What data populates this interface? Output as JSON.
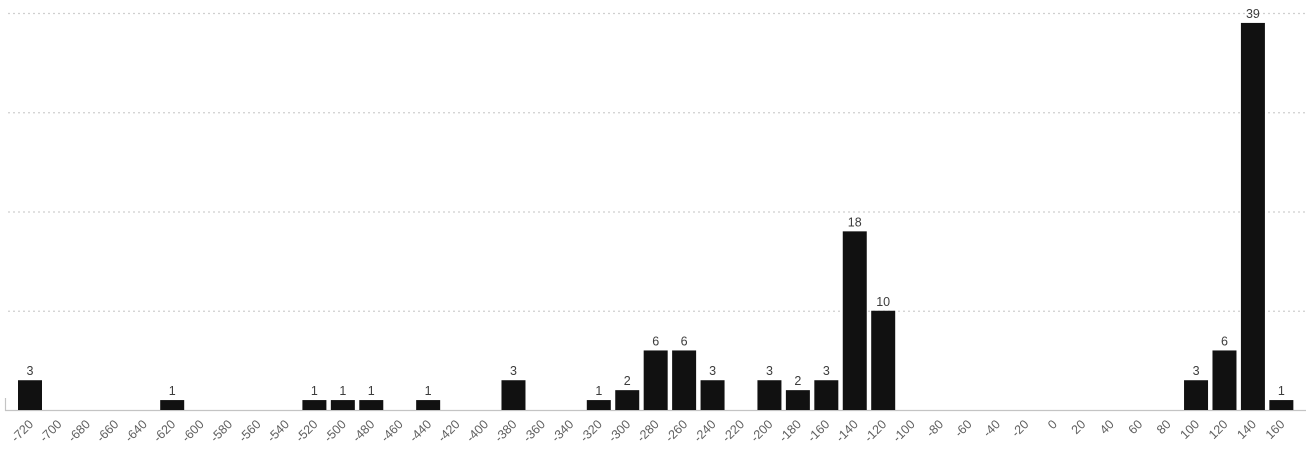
{
  "chart_data": {
    "type": "bar",
    "title": "",
    "xlabel": "",
    "ylabel": "",
    "categories": [
      "-720",
      "-700",
      "-680",
      "-660",
      "-640",
      "-620",
      "-600",
      "-580",
      "-560",
      "-540",
      "-520",
      "-500",
      "-480",
      "-460",
      "-440",
      "-420",
      "-400",
      "-380",
      "-360",
      "-340",
      "-320",
      "-300",
      "-280",
      "-260",
      "-240",
      "-220",
      "-200",
      "-180",
      "-160",
      "-140",
      "-120",
      "-100",
      "-80",
      "-60",
      "-40",
      "-20",
      "0",
      "20",
      "40",
      "60",
      "80",
      "100",
      "120",
      "140",
      "160"
    ],
    "values": [
      3,
      0,
      0,
      0,
      0,
      1,
      0,
      0,
      0,
      0,
      1,
      1,
      1,
      0,
      1,
      0,
      0,
      3,
      0,
      0,
      1,
      2,
      6,
      6,
      3,
      0,
      3,
      2,
      3,
      18,
      10,
      0,
      0,
      0,
      0,
      0,
      0,
      0,
      0,
      0,
      0,
      3,
      6,
      39,
      1
    ],
    "ylim": [
      0,
      40
    ],
    "yticks": [
      10,
      20,
      30,
      40
    ],
    "grid": "horizontal-dotted",
    "legend_position": "none",
    "value_labels_shown": true,
    "x_tick_rotation_deg": -45
  },
  "style": {
    "bar_color": "#111111",
    "value_label_color": "#3d3d3d",
    "tick_label_color": "#5f5f5f",
    "grid_color": "#cfcfcf",
    "axis_line_color": "#c4c4c4",
    "background_color": "#ffffff"
  }
}
